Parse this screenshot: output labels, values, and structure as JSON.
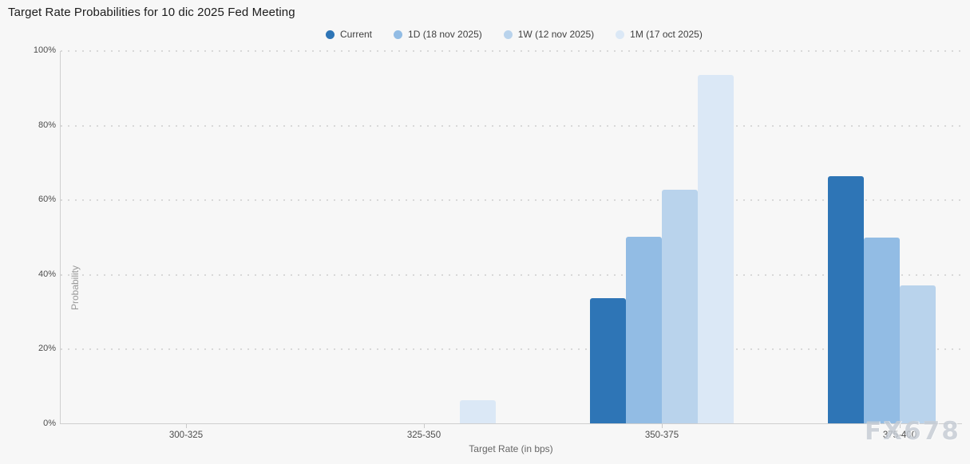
{
  "title": "Target Rate Probabilities for 10 dic 2025 Fed Meeting",
  "watermark": "FX678",
  "chart_data": {
    "type": "bar",
    "title": "Target Rate Probabilities for 10 dic 2025 Fed Meeting",
    "xlabel": "Target Rate (in bps)",
    "ylabel": "Probability",
    "ylim": [
      0,
      100
    ],
    "ytick_labels": [
      "0%",
      "20%",
      "40%",
      "60%",
      "80%",
      "100%"
    ],
    "grid": "horizontal dotted",
    "legend_position": "top-center",
    "categories": [
      "300-325",
      "325-350",
      "350-375",
      "375-400"
    ],
    "series": [
      {
        "name": "Current",
        "color": "#2e75b6",
        "values": [
          0,
          0,
          33.5,
          66.3
        ]
      },
      {
        "name": "1D (18 nov 2025)",
        "color": "#92bce4",
        "values": [
          0,
          0,
          50.0,
          49.7
        ]
      },
      {
        "name": "1W (12 nov 2025)",
        "color": "#b9d3ec",
        "values": [
          0,
          0,
          62.6,
          37.0
        ]
      },
      {
        "name": "1M (17 oct 2025)",
        "color": "#dbe8f6",
        "values": [
          0,
          6.2,
          93.4,
          0
        ]
      }
    ]
  }
}
